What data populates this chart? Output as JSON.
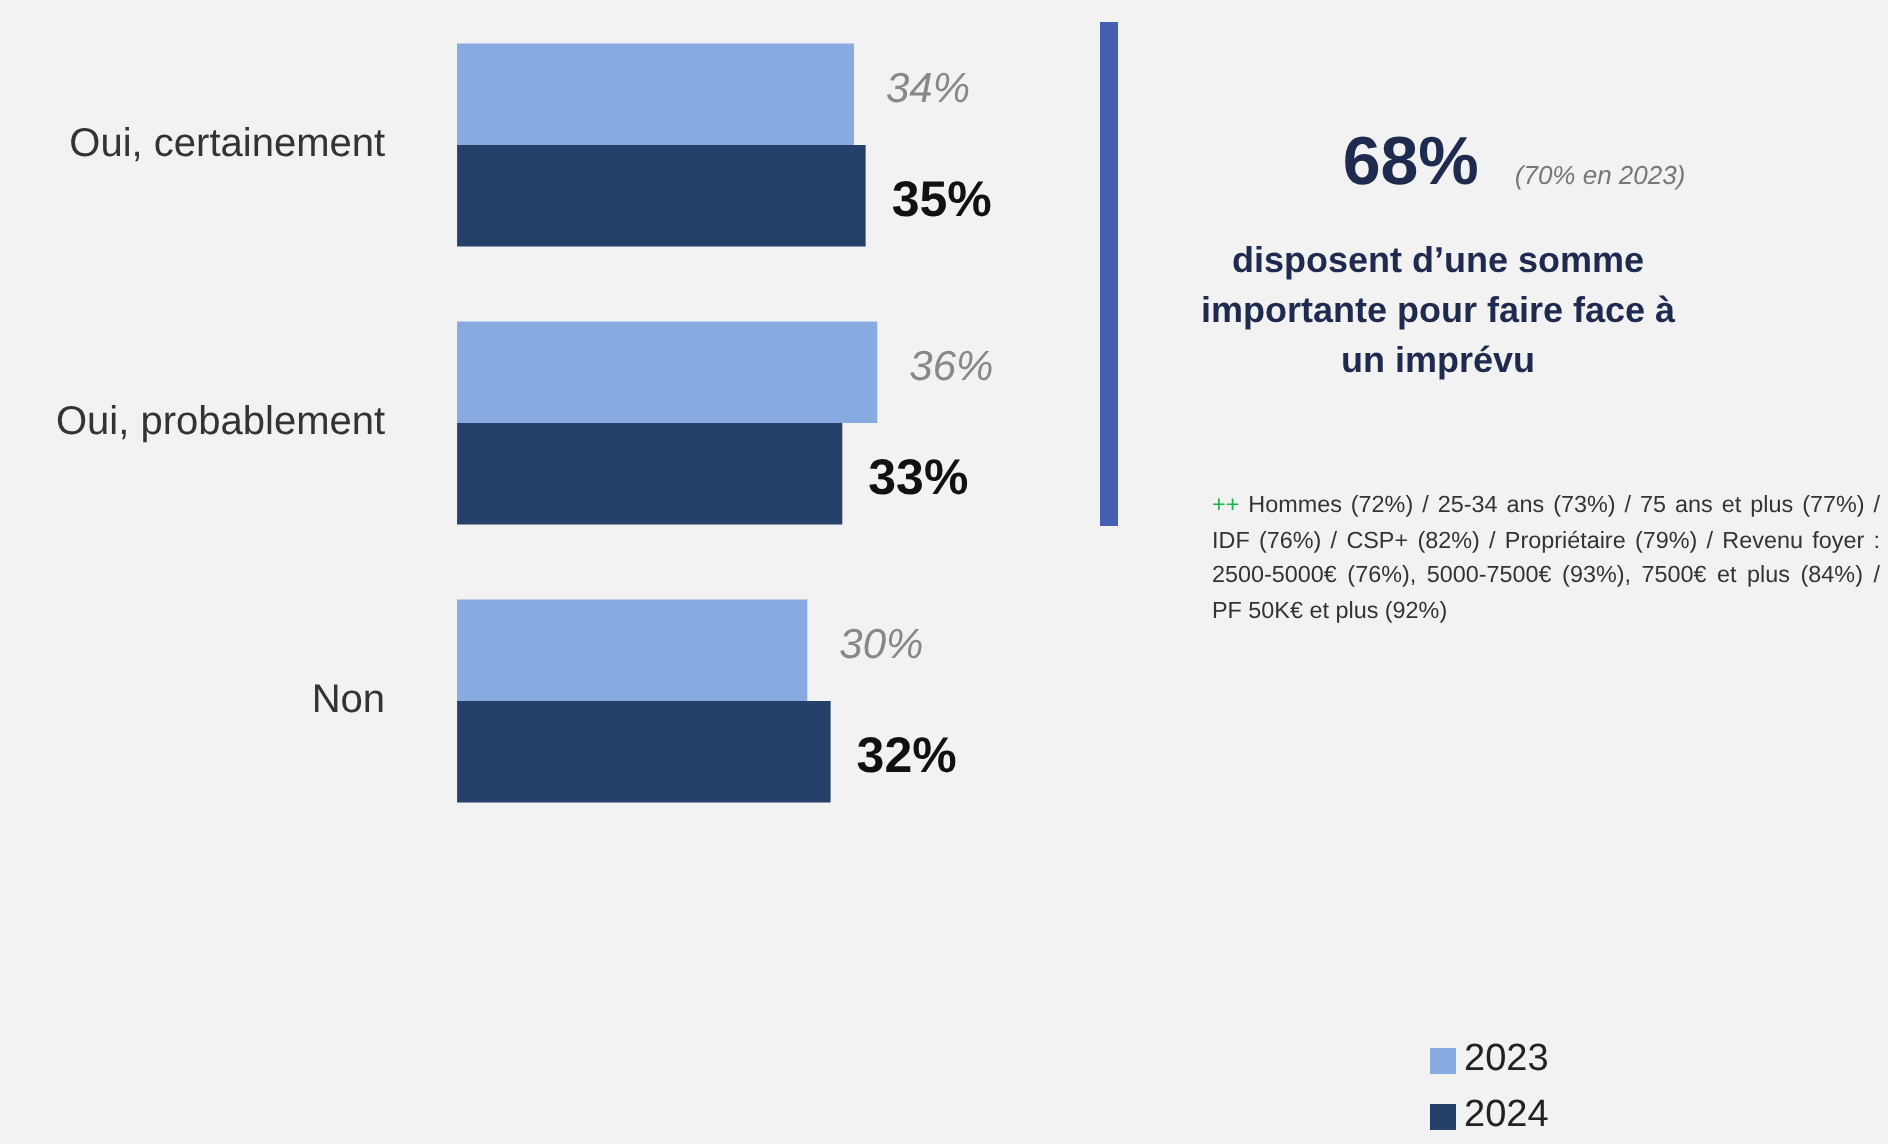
{
  "chart_data": {
    "type": "bar",
    "orientation": "horizontal",
    "categories": [
      "Oui, certainement",
      "Oui, probablement",
      "Non"
    ],
    "series": [
      {
        "name": "2023",
        "color": "#87aae0",
        "values": [
          34,
          36,
          30
        ],
        "value_labels": [
          "34%",
          "36%",
          "30%"
        ]
      },
      {
        "name": "2024",
        "color": "#264169",
        "values": [
          35,
          33,
          32
        ],
        "value_labels": [
          "35%",
          "33%",
          "32%"
        ]
      }
    ],
    "tick_labels": "y",
    "grid": false,
    "legend": "bottom right",
    "annotations": [
      "68%",
      "(70% en 2023)",
      "disposent d’une somme importante pour faire face à un imprévu",
      "++ Hommes (72%) / 25-34 ans (73%) / 75 ans et plus (77%) / IDF (76%) / CSP+ (82%) / Propriétaire (79%) / Revenu foyer : 2500-5000€ (76%), 5000-7500€ (93%), 7500€ et plus (84%) / PF 50K€ et plus (92%)"
    ]
  }
}
